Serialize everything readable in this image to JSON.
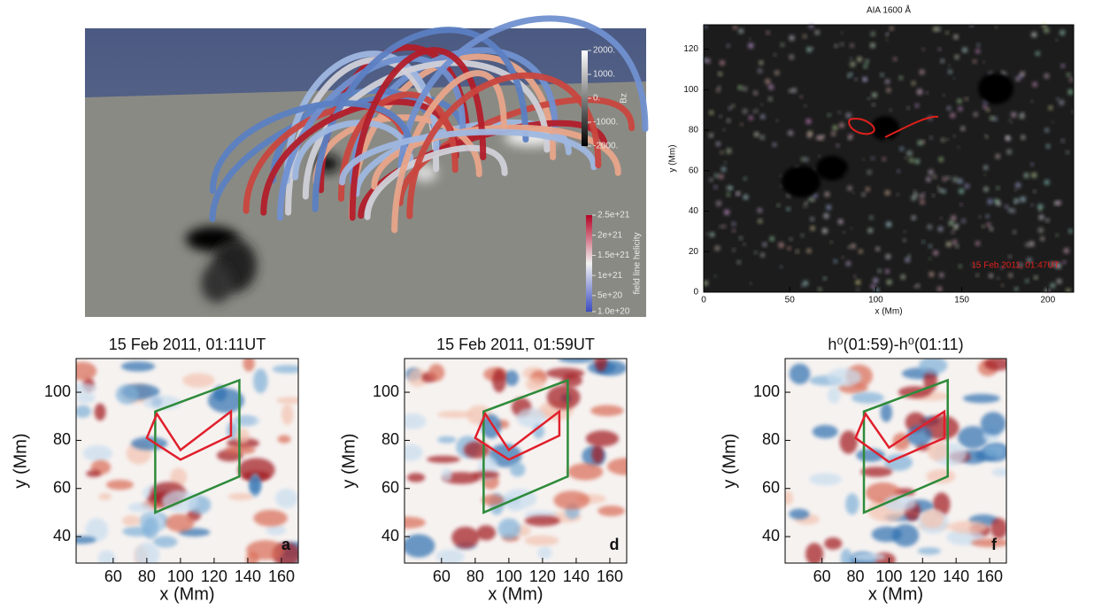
{
  "chart_data": [
    {
      "type": "render",
      "colorbars": [
        {
          "label": "Bz",
          "lim": [
            -2000,
            2000
          ],
          "colors": [
            "#000000",
            "#ffffff"
          ],
          "ticks": [
            {
              "value": 2000,
              "label": "2000."
            },
            {
              "value": 1000,
              "label": "1000."
            },
            {
              "value": 0,
              "label": "0."
            },
            {
              "value": -1000,
              "label": "-1000."
            },
            {
              "value": -2000,
              "label": "-2000."
            }
          ]
        },
        {
          "label": "field line helicity",
          "lim": [
            1e+20,
            2.5e+21
          ],
          "colors": [
            "#3b4cc0",
            "#f2f2f2",
            "#b40426"
          ],
          "ticks": [
            {
              "value": 2.5e+21,
              "label": "2.5e+21"
            },
            {
              "value": 2e+21,
              "label": "2e+21"
            },
            {
              "value": 1.5e+21,
              "label": "1.5e+21"
            },
            {
              "value": 1e+21,
              "label": "1e+21"
            },
            {
              "value": 5e+20,
              "label": "5e+20"
            },
            {
              "value": 1e+20,
              "label": "1.0e+20"
            }
          ]
        }
      ]
    },
    {
      "type": "image",
      "title": "AIA 1600 Å",
      "x_label": "x (Mm)",
      "y_label": "y (Mm)",
      "annotation": "15 Feb 2011, 01:47UT",
      "annotation_color": "#e0201c",
      "xlim": [
        0,
        215
      ],
      "xticks": [
        0,
        50,
        100,
        150,
        200
      ],
      "ylim": [
        0,
        132
      ],
      "yticks": [
        0,
        20,
        40,
        60,
        80,
        100,
        120
      ]
    },
    {
      "type": "heatmap",
      "title": "15 Feb 2011, 01:11UT",
      "x_label": "x (Mm)",
      "y_label": "y (Mm)",
      "letter": "a",
      "xlim": [
        38,
        170
      ],
      "xticks": [
        60,
        80,
        100,
        120,
        140,
        160
      ],
      "ylim": [
        29,
        114
      ],
      "yticks": [
        40,
        60,
        80,
        100
      ],
      "regions": [
        {
          "color": "#2e8b3a",
          "x": [
            85,
            85,
            135,
            135
          ],
          "y": [
            50,
            92,
            105,
            65
          ]
        },
        {
          "color": "#e0202c",
          "x": [
            80,
            86,
            100,
            130,
            130,
            100
          ],
          "y": [
            81,
            91,
            76,
            92,
            82,
            72
          ]
        }
      ]
    },
    {
      "type": "heatmap",
      "title": "15 Feb 2011, 01:59UT",
      "x_label": "x (Mm)",
      "y_label": "y (Mm)",
      "letter": "d",
      "xlim": [
        38,
        170
      ],
      "xticks": [
        60,
        80,
        100,
        120,
        140,
        160
      ],
      "ylim": [
        29,
        114
      ],
      "yticks": [
        40,
        60,
        80,
        100
      ],
      "regions": [
        {
          "color": "#2e8b3a",
          "x": [
            85,
            85,
            135,
            135
          ],
          "y": [
            50,
            92,
            105,
            65
          ]
        },
        {
          "color": "#e0202c",
          "x": [
            80,
            86,
            100,
            130,
            130,
            100
          ],
          "y": [
            81,
            91,
            76,
            92,
            82,
            72
          ]
        }
      ]
    },
    {
      "type": "heatmap",
      "title": "h⁰(01:59)-h⁰(01:11)",
      "x_label": "x (Mm)",
      "y_label": "y (Mm)",
      "letter": "f",
      "xlim": [
        38,
        170
      ],
      "xticks": [
        60,
        80,
        100,
        120,
        140,
        160
      ],
      "ylim": [
        29,
        114
      ],
      "yticks": [
        40,
        60,
        80,
        100
      ],
      "regions": [
        {
          "color": "#2e8b3a",
          "x": [
            85,
            85,
            135,
            135
          ],
          "y": [
            50,
            92,
            105,
            65
          ]
        },
        {
          "color": "#e0202c",
          "x": [
            80,
            86,
            100,
            133,
            133,
            100
          ],
          "y": [
            81,
            91,
            77,
            92,
            81,
            71
          ]
        }
      ]
    }
  ]
}
